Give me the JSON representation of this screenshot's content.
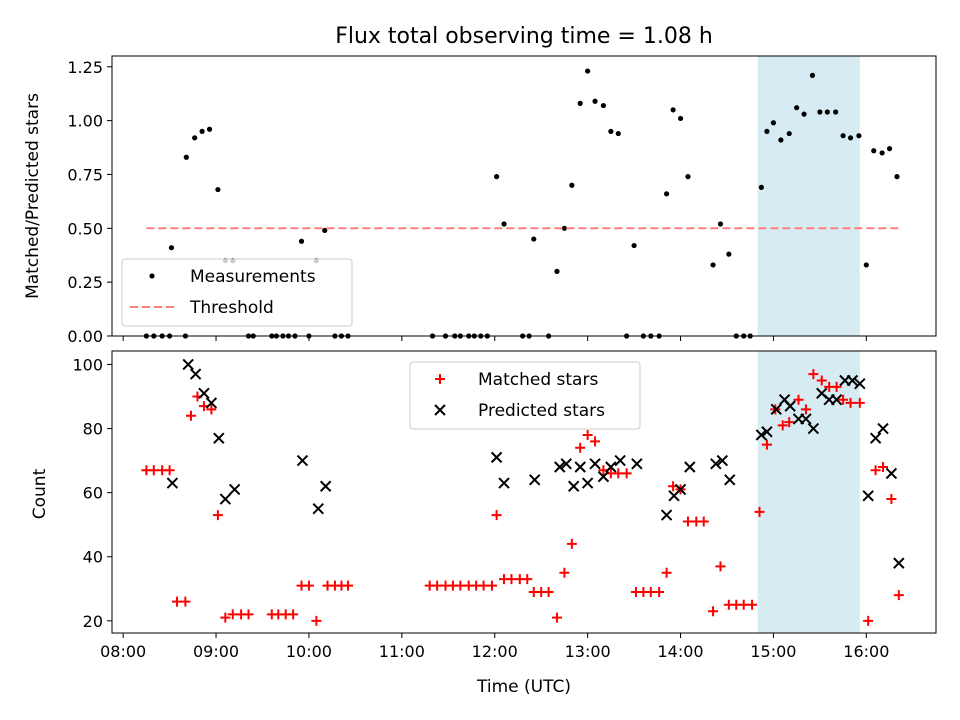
{
  "chart_data": [
    {
      "type": "scatter",
      "title": "Flux total observing time = 1.08 h",
      "ylabel": "Matched/Predicted stars",
      "xlabel": "",
      "ylim": [
        0,
        1.3
      ],
      "xlim": [
        7.88,
        16.75
      ],
      "yticks": [
        0.0,
        0.25,
        0.5,
        0.75,
        1.0,
        1.25
      ],
      "ytick_labels": [
        "0.00",
        "0.25",
        "0.50",
        "0.75",
        "1.00",
        "1.25"
      ],
      "highlight_span": [
        14.83,
        15.93
      ],
      "highlight_color": "#add8e6",
      "legend_position": "lower-left",
      "series": [
        {
          "name": "Measurements",
          "marker": "dot",
          "color": "#000000",
          "points": [
            [
              8.25,
              0
            ],
            [
              8.33,
              0
            ],
            [
              8.42,
              0
            ],
            [
              8.5,
              0
            ],
            [
              8.52,
              0.41
            ],
            [
              8.67,
              0
            ],
            [
              8.68,
              0.83
            ],
            [
              8.77,
              0.92
            ],
            [
              8.85,
              0.95
            ],
            [
              8.93,
              0.96
            ],
            [
              9.02,
              0.68
            ],
            [
              9.1,
              0.35
            ],
            [
              9.18,
              0.35
            ],
            [
              9.35,
              0
            ],
            [
              9.4,
              0
            ],
            [
              9.6,
              0
            ],
            [
              9.65,
              0
            ],
            [
              9.72,
              0
            ],
            [
              9.78,
              0
            ],
            [
              9.85,
              0
            ],
            [
              9.92,
              0.44
            ],
            [
              10.0,
              0
            ],
            [
              10.08,
              0.35
            ],
            [
              10.17,
              0.49
            ],
            [
              10.28,
              0
            ],
            [
              10.35,
              0
            ],
            [
              10.42,
              0
            ],
            [
              11.33,
              0
            ],
            [
              11.47,
              0
            ],
            [
              11.57,
              0
            ],
            [
              11.63,
              0
            ],
            [
              11.72,
              0
            ],
            [
              11.78,
              0
            ],
            [
              11.85,
              0
            ],
            [
              11.92,
              0
            ],
            [
              12.02,
              0.74
            ],
            [
              12.1,
              0.52
            ],
            [
              12.3,
              0
            ],
            [
              12.37,
              0
            ],
            [
              12.42,
              0.45
            ],
            [
              12.58,
              0
            ],
            [
              12.67,
              0.3
            ],
            [
              12.75,
              0.5
            ],
            [
              12.83,
              0.7
            ],
            [
              12.92,
              1.08
            ],
            [
              13.0,
              1.23
            ],
            [
              13.08,
              1.09
            ],
            [
              13.17,
              1.07
            ],
            [
              13.25,
              0.95
            ],
            [
              13.33,
              0.94
            ],
            [
              13.42,
              0
            ],
            [
              13.5,
              0.42
            ],
            [
              13.6,
              0
            ],
            [
              13.68,
              0
            ],
            [
              13.77,
              0
            ],
            [
              13.85,
              0.66
            ],
            [
              13.92,
              1.05
            ],
            [
              14.0,
              1.01
            ],
            [
              14.08,
              0.74
            ],
            [
              14.35,
              0.33
            ],
            [
              14.43,
              0.52
            ],
            [
              14.52,
              0.38
            ],
            [
              14.6,
              0
            ],
            [
              14.68,
              0
            ],
            [
              14.75,
              0
            ],
            [
              14.87,
              0.69
            ],
            [
              14.93,
              0.95
            ],
            [
              15.0,
              0.99
            ],
            [
              15.08,
              0.91
            ],
            [
              15.17,
              0.94
            ],
            [
              15.25,
              1.06
            ],
            [
              15.33,
              1.03
            ],
            [
              15.42,
              1.21
            ],
            [
              15.5,
              1.04
            ],
            [
              15.58,
              1.04
            ],
            [
              15.67,
              1.04
            ],
            [
              15.75,
              0.93
            ],
            [
              15.83,
              0.92
            ],
            [
              15.92,
              0.93
            ],
            [
              16.0,
              0.33
            ],
            [
              16.08,
              0.86
            ],
            [
              16.17,
              0.85
            ],
            [
              16.25,
              0.87
            ],
            [
              16.33,
              0.74
            ]
          ]
        },
        {
          "name": "Threshold",
          "marker": "dashed-line",
          "color": "#ff7f7f",
          "points": [
            [
              8.25,
              0.5
            ],
            [
              16.35,
              0.5
            ]
          ]
        }
      ]
    },
    {
      "type": "scatter",
      "title": "",
      "ylabel": "Count",
      "xlabel": "Time (UTC)",
      "ylim": [
        16.2,
        104.2
      ],
      "xlim": [
        7.88,
        16.75
      ],
      "yticks": [
        20,
        40,
        60,
        80,
        100
      ],
      "ytick_labels": [
        "20",
        "40",
        "60",
        "80",
        "100"
      ],
      "xticks": [
        8,
        9,
        10,
        11,
        12,
        13,
        14,
        15,
        16
      ],
      "xtick_labels": [
        "08:00",
        "09:00",
        "10:00",
        "11:00",
        "12:00",
        "13:00",
        "14:00",
        "15:00",
        "16:00"
      ],
      "highlight_span": [
        14.83,
        15.93
      ],
      "highlight_color": "#add8e6",
      "legend_position": "top-center",
      "series": [
        {
          "name": "Matched stars",
          "marker": "plus",
          "color": "#ff0000",
          "points": [
            [
              8.25,
              67
            ],
            [
              8.33,
              67
            ],
            [
              8.42,
              67
            ],
            [
              8.5,
              67
            ],
            [
              8.58,
              26
            ],
            [
              8.67,
              26
            ],
            [
              8.73,
              84
            ],
            [
              8.8,
              90
            ],
            [
              8.87,
              87
            ],
            [
              8.95,
              86
            ],
            [
              9.02,
              53
            ],
            [
              9.1,
              21
            ],
            [
              9.18,
              22
            ],
            [
              9.27,
              22
            ],
            [
              9.35,
              22
            ],
            [
              9.6,
              22
            ],
            [
              9.67,
              22
            ],
            [
              9.75,
              22
            ],
            [
              9.83,
              22
            ],
            [
              9.92,
              31
            ],
            [
              10.0,
              31
            ],
            [
              10.08,
              20
            ],
            [
              10.2,
              31
            ],
            [
              10.28,
              31
            ],
            [
              10.35,
              31
            ],
            [
              10.42,
              31
            ],
            [
              11.3,
              31
            ],
            [
              11.38,
              31
            ],
            [
              11.47,
              31
            ],
            [
              11.55,
              31
            ],
            [
              11.63,
              31
            ],
            [
              11.72,
              31
            ],
            [
              11.8,
              31
            ],
            [
              11.88,
              31
            ],
            [
              11.97,
              31
            ],
            [
              12.02,
              53
            ],
            [
              12.1,
              33
            ],
            [
              12.18,
              33
            ],
            [
              12.27,
              33
            ],
            [
              12.35,
              33
            ],
            [
              12.42,
              29
            ],
            [
              12.5,
              29
            ],
            [
              12.58,
              29
            ],
            [
              12.67,
              21
            ],
            [
              12.75,
              35
            ],
            [
              12.83,
              44
            ],
            [
              12.92,
              74
            ],
            [
              13.0,
              78
            ],
            [
              13.08,
              76
            ],
            [
              13.17,
              67
            ],
            [
              13.25,
              66
            ],
            [
              13.33,
              66
            ],
            [
              13.42,
              66
            ],
            [
              13.52,
              29
            ],
            [
              13.6,
              29
            ],
            [
              13.68,
              29
            ],
            [
              13.77,
              29
            ],
            [
              13.85,
              35
            ],
            [
              13.92,
              62
            ],
            [
              14.0,
              61
            ],
            [
              14.08,
              51
            ],
            [
              14.17,
              51
            ],
            [
              14.25,
              51
            ],
            [
              14.35,
              23
            ],
            [
              14.43,
              37
            ],
            [
              14.52,
              25
            ],
            [
              14.6,
              25
            ],
            [
              14.68,
              25
            ],
            [
              14.77,
              25
            ],
            [
              14.85,
              54
            ],
            [
              14.93,
              75
            ],
            [
              15.02,
              86
            ],
            [
              15.1,
              81
            ],
            [
              15.17,
              82
            ],
            [
              15.27,
              89
            ],
            [
              15.35,
              86
            ],
            [
              15.43,
              97
            ],
            [
              15.52,
              95
            ],
            [
              15.6,
              93
            ],
            [
              15.68,
              93
            ],
            [
              15.75,
              89
            ],
            [
              15.83,
              88
            ],
            [
              15.93,
              88
            ],
            [
              16.02,
              20
            ],
            [
              16.1,
              67
            ],
            [
              16.18,
              68
            ],
            [
              16.27,
              58
            ],
            [
              16.35,
              28
            ]
          ]
        },
        {
          "name": "Predicted stars",
          "marker": "x",
          "color": "#000000",
          "points": [
            [
              8.53,
              63
            ],
            [
              8.7,
              100
            ],
            [
              8.78,
              97
            ],
            [
              8.87,
              91
            ],
            [
              8.95,
              88
            ],
            [
              9.03,
              77
            ],
            [
              9.1,
              58
            ],
            [
              9.2,
              61
            ],
            [
              9.93,
              70
            ],
            [
              10.1,
              55
            ],
            [
              10.18,
              62
            ],
            [
              12.02,
              71
            ],
            [
              12.1,
              63
            ],
            [
              12.43,
              64
            ],
            [
              12.7,
              68
            ],
            [
              12.77,
              69
            ],
            [
              12.85,
              62
            ],
            [
              12.92,
              68
            ],
            [
              13.0,
              63
            ],
            [
              13.08,
              69
            ],
            [
              13.17,
              65
            ],
            [
              13.25,
              68
            ],
            [
              13.35,
              70
            ],
            [
              13.53,
              69
            ],
            [
              13.85,
              53
            ],
            [
              13.93,
              59
            ],
            [
              14.0,
              61
            ],
            [
              14.1,
              68
            ],
            [
              14.38,
              69
            ],
            [
              14.45,
              70
            ],
            [
              14.53,
              64
            ],
            [
              14.87,
              78
            ],
            [
              14.93,
              79
            ],
            [
              15.03,
              86
            ],
            [
              15.12,
              89
            ],
            [
              15.18,
              87
            ],
            [
              15.27,
              83
            ],
            [
              15.35,
              83
            ],
            [
              15.43,
              80
            ],
            [
              15.52,
              91
            ],
            [
              15.6,
              89
            ],
            [
              15.68,
              89
            ],
            [
              15.77,
              95
            ],
            [
              15.85,
              95
            ],
            [
              15.93,
              94
            ],
            [
              16.02,
              59
            ],
            [
              16.1,
              77
            ],
            [
              16.18,
              80
            ],
            [
              16.27,
              66
            ],
            [
              16.35,
              38
            ]
          ]
        }
      ]
    }
  ]
}
